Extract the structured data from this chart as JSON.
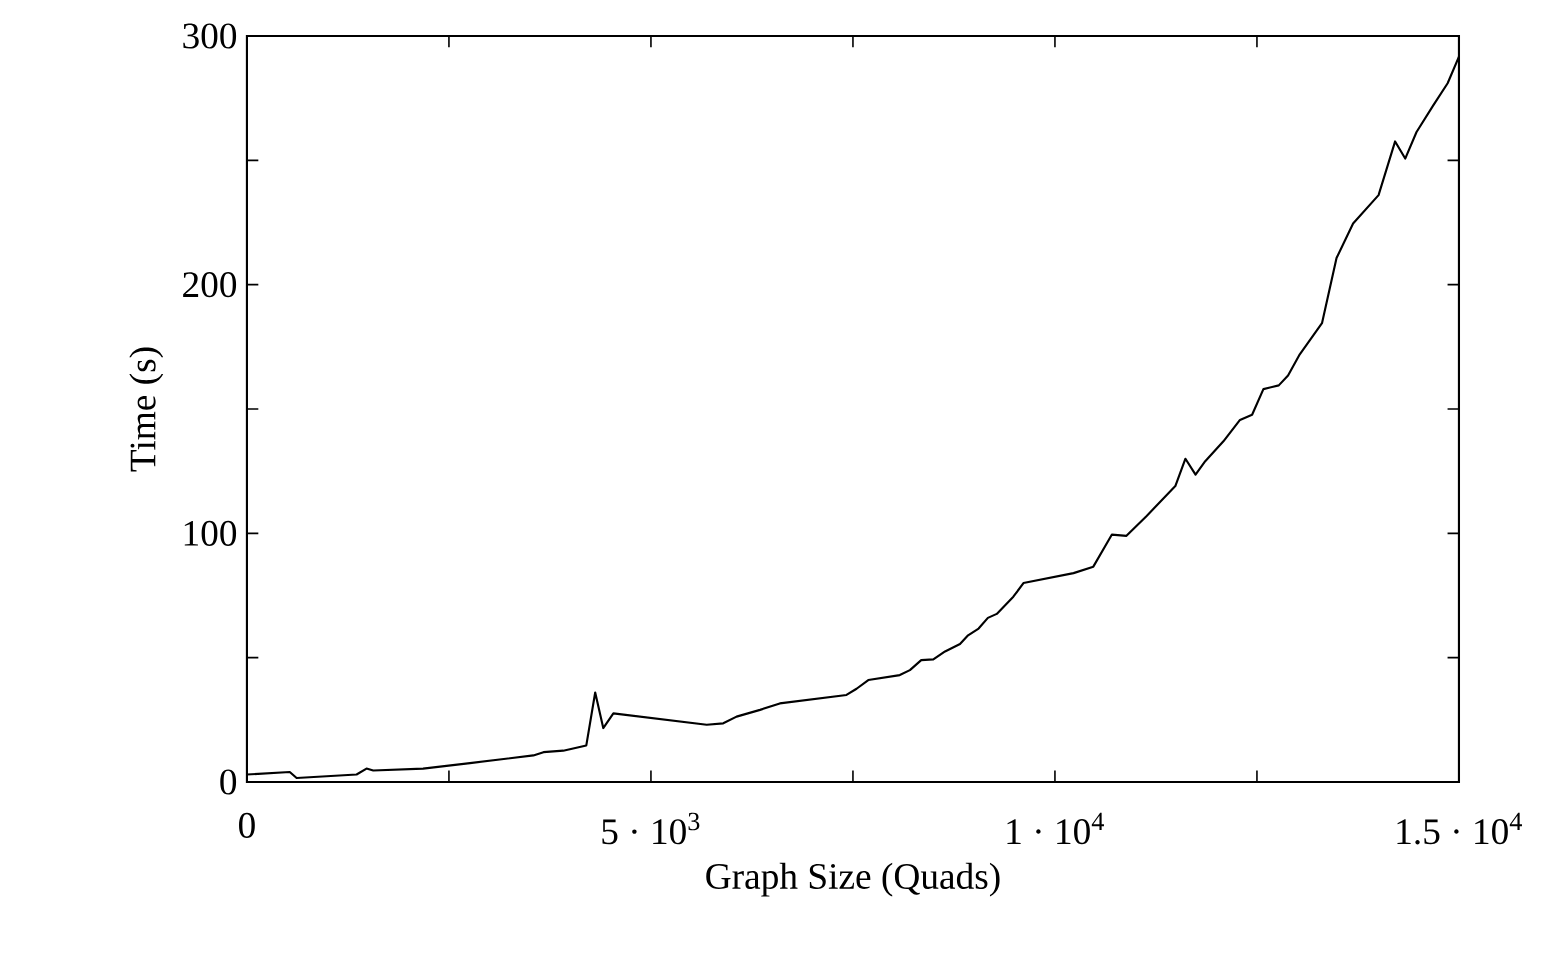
{
  "chart_data": {
    "type": "line",
    "xlabel": "Graph Size (Quads)",
    "ylabel": "Time (s)",
    "xlim": [
      0,
      15000
    ],
    "ylim": [
      0,
      300
    ],
    "xticks": [
      0,
      {
        "value": 2500,
        "label": null
      },
      {
        "value": 5000,
        "label": "5 · 10$^{3}$"
      },
      {
        "value": 7500,
        "label": null
      },
      {
        "value": 10000,
        "label": "1 · 10$^{4}$"
      },
      {
        "value": 12500,
        "label": null
      },
      {
        "value": 15000,
        "label": "1.5 · 10$^{4}$"
      }
    ],
    "yticks": [
      0,
      {
        "value": 50,
        "label": null
      },
      100,
      {
        "value": 150,
        "label": null
      },
      200,
      {
        "value": 250,
        "label": null
      },
      300
    ],
    "grid": false,
    "line_style": "solid",
    "series": [
      {
        "color": "#000000",
        "x": [
          0,
          530,
          615,
          1357,
          1480,
          1563,
          2180,
          2760,
          3545,
          3670,
          3915,
          4200,
          4310,
          4410,
          4535,
          5690,
          5895,
          6060,
          6350,
          6595,
          7420,
          7545,
          7690,
          8080,
          8205,
          8345,
          8495,
          8640,
          8825,
          8925,
          9055,
          9170,
          9280,
          9485,
          9610,
          10230,
          10475,
          10705,
          10885,
          11135,
          11490,
          11615,
          11740,
          11860,
          12085,
          12290,
          12440,
          12580,
          12770,
          12885,
          13030,
          13305,
          13485,
          13690,
          14005,
          14210,
          14335,
          14475,
          14680,
          14860,
          15000
        ],
        "values": [
          3,
          4,
          1.6,
          3,
          5.4,
          4.6,
          5.4,
          7.6,
          10.7,
          12,
          12.6,
          14.7,
          36,
          21.7,
          27.6,
          23,
          23.6,
          26.3,
          29,
          31.6,
          35,
          37.5,
          41,
          43,
          45,
          49,
          49.3,
          52.5,
          55.5,
          59,
          61.7,
          66,
          67.6,
          74.5,
          80,
          84,
          86.6,
          99.5,
          99,
          107,
          119,
          130,
          123.6,
          129,
          137,
          145.6,
          147.7,
          158,
          159.5,
          163.5,
          172,
          184.5,
          210.7,
          224.6,
          236,
          257.6,
          250.7,
          261.4,
          272,
          281,
          291.7
        ]
      }
    ]
  }
}
